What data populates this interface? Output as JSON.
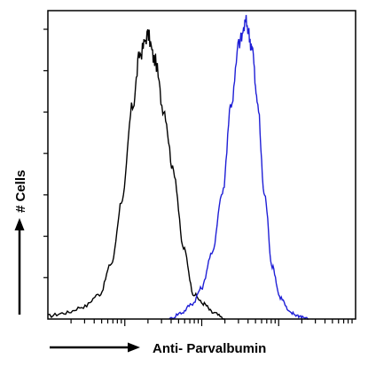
{
  "chart_data": {
    "type": "line",
    "title": "",
    "xlabel": "Anti- Parvalbumin",
    "ylabel": "# Cells",
    "x_scale": "log",
    "xlim": [
      0.1,
      1000
    ],
    "ylim": [
      0,
      100
    ],
    "grid": false,
    "legend": "none",
    "series": [
      {
        "color": "#000000",
        "x": [
          0.1,
          0.17,
          0.29,
          0.47,
          0.67,
          0.93,
          1.26,
          1.58,
          1.99,
          2.44,
          3.2,
          4.3,
          5.8,
          7.9,
          10.5,
          14.1,
          20
        ],
        "y": [
          1,
          2,
          4,
          8,
          18,
          39,
          69,
          86,
          92,
          84,
          68,
          48,
          23,
          8,
          5,
          2,
          0
        ]
      },
      {
        "color": "#1f1fd6",
        "x": [
          3.8,
          5.4,
          7.6,
          9.9,
          13.5,
          18.6,
          24.2,
          31.1,
          37.8,
          44.6,
          52.4,
          65.8,
          82.4,
          105,
          141,
          188,
          244
        ],
        "y": [
          0,
          2,
          5,
          10,
          21,
          41,
          70,
          90,
          96,
          89,
          71,
          40,
          17,
          7,
          2,
          1,
          0
        ]
      }
    ]
  },
  "colors": {
    "frame": "#000000",
    "arrow": "#000000"
  }
}
